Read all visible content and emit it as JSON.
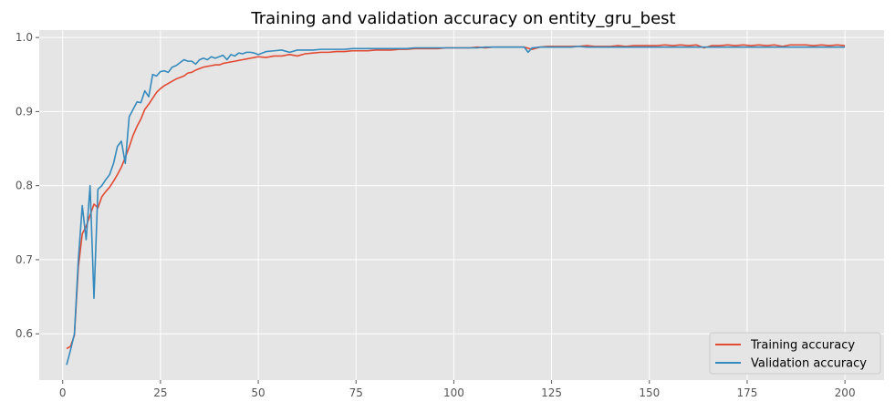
{
  "chart_data": {
    "type": "line",
    "title": "Training and validation accuracy on entity_gru_best",
    "xlabel": "",
    "ylabel": "",
    "xlim": [
      -6,
      210
    ],
    "ylim": [
      0.5375,
      1.01
    ],
    "x_ticks": [
      0,
      25,
      50,
      75,
      100,
      125,
      150,
      175,
      200
    ],
    "y_ticks": [
      0.6,
      0.7,
      0.8,
      0.9,
      1.0
    ],
    "x_tick_labels": [
      "0",
      "25",
      "50",
      "75",
      "100",
      "125",
      "150",
      "175",
      "200"
    ],
    "y_tick_labels": [
      "0.6",
      "0.7",
      "0.8",
      "0.9",
      "1.0"
    ],
    "grid": true,
    "legend_position": "bottom-right",
    "series": [
      {
        "name": "Training accuracy",
        "color": "#E24A33",
        "x": [
          1,
          2,
          3,
          4,
          5,
          6,
          7,
          8,
          9,
          10,
          11,
          12,
          13,
          14,
          15,
          16,
          17,
          18,
          19,
          20,
          21,
          22,
          23,
          24,
          25,
          26,
          27,
          28,
          29,
          30,
          31,
          32,
          33,
          34,
          35,
          36,
          37,
          38,
          39,
          40,
          41,
          42,
          43,
          44,
          45,
          46,
          47,
          48,
          49,
          50,
          52,
          54,
          56,
          58,
          60,
          62,
          64,
          66,
          68,
          70,
          72,
          74,
          76,
          78,
          80,
          82,
          84,
          86,
          88,
          90,
          92,
          94,
          96,
          98,
          100,
          102,
          104,
          106,
          108,
          110,
          112,
          114,
          116,
          118,
          120,
          122,
          124,
          126,
          128,
          130,
          132,
          134,
          136,
          138,
          140,
          142,
          144,
          146,
          148,
          150,
          152,
          154,
          156,
          158,
          160,
          162,
          164,
          166,
          168,
          170,
          172,
          174,
          176,
          178,
          180,
          182,
          184,
          186,
          188,
          190,
          192,
          194,
          196,
          198,
          200
        ],
        "values": [
          0.58,
          0.583,
          0.598,
          0.69,
          0.735,
          0.745,
          0.76,
          0.775,
          0.77,
          0.785,
          0.792,
          0.798,
          0.806,
          0.815,
          0.825,
          0.838,
          0.852,
          0.868,
          0.88,
          0.89,
          0.903,
          0.91,
          0.918,
          0.926,
          0.931,
          0.935,
          0.938,
          0.941,
          0.944,
          0.946,
          0.948,
          0.952,
          0.953,
          0.956,
          0.958,
          0.96,
          0.961,
          0.962,
          0.963,
          0.963,
          0.965,
          0.966,
          0.967,
          0.968,
          0.969,
          0.97,
          0.971,
          0.972,
          0.973,
          0.974,
          0.973,
          0.975,
          0.975,
          0.977,
          0.975,
          0.978,
          0.979,
          0.98,
          0.98,
          0.981,
          0.981,
          0.982,
          0.982,
          0.982,
          0.983,
          0.983,
          0.983,
          0.984,
          0.984,
          0.985,
          0.985,
          0.985,
          0.985,
          0.986,
          0.986,
          0.986,
          0.986,
          0.987,
          0.986,
          0.987,
          0.987,
          0.987,
          0.987,
          0.987,
          0.984,
          0.987,
          0.988,
          0.988,
          0.988,
          0.988,
          0.988,
          0.989,
          0.988,
          0.988,
          0.988,
          0.989,
          0.988,
          0.989,
          0.989,
          0.989,
          0.989,
          0.99,
          0.989,
          0.99,
          0.989,
          0.99,
          0.986,
          0.989,
          0.989,
          0.99,
          0.989,
          0.99,
          0.989,
          0.99,
          0.989,
          0.99,
          0.988,
          0.99,
          0.99,
          0.99,
          0.989,
          0.99,
          0.989,
          0.99,
          0.989
        ]
      },
      {
        "name": "Validation accuracy",
        "color": "#348ABD",
        "x": [
          1,
          2,
          3,
          4,
          5,
          6,
          7,
          8,
          9,
          10,
          11,
          12,
          13,
          14,
          15,
          16,
          17,
          18,
          19,
          20,
          21,
          22,
          23,
          24,
          25,
          26,
          27,
          28,
          29,
          30,
          31,
          32,
          33,
          34,
          35,
          36,
          37,
          38,
          39,
          40,
          41,
          42,
          43,
          44,
          45,
          46,
          47,
          48,
          49,
          50,
          52,
          54,
          56,
          58,
          60,
          62,
          64,
          66,
          68,
          70,
          72,
          74,
          76,
          78,
          80,
          82,
          84,
          86,
          88,
          90,
          92,
          94,
          96,
          98,
          100,
          102,
          104,
          106,
          108,
          110,
          112,
          114,
          116,
          118,
          119,
          120,
          122,
          124,
          126,
          128,
          130,
          132,
          134,
          136,
          138,
          140,
          142,
          144,
          146,
          148,
          150,
          152,
          154,
          156,
          158,
          160,
          162,
          164,
          166,
          168,
          170,
          172,
          174,
          176,
          178,
          180,
          182,
          184,
          186,
          188,
          190,
          192,
          194,
          196,
          198,
          200
        ],
        "values": [
          0.558,
          0.578,
          0.6,
          0.7,
          0.773,
          0.727,
          0.8,
          0.648,
          0.795,
          0.8,
          0.808,
          0.815,
          0.83,
          0.853,
          0.86,
          0.83,
          0.893,
          0.903,
          0.913,
          0.912,
          0.928,
          0.92,
          0.95,
          0.948,
          0.954,
          0.955,
          0.953,
          0.96,
          0.962,
          0.966,
          0.97,
          0.968,
          0.968,
          0.964,
          0.97,
          0.972,
          0.97,
          0.974,
          0.972,
          0.974,
          0.976,
          0.97,
          0.977,
          0.975,
          0.979,
          0.978,
          0.98,
          0.98,
          0.979,
          0.977,
          0.981,
          0.982,
          0.983,
          0.98,
          0.983,
          0.983,
          0.983,
          0.984,
          0.984,
          0.984,
          0.984,
          0.985,
          0.985,
          0.985,
          0.985,
          0.985,
          0.985,
          0.985,
          0.985,
          0.986,
          0.986,
          0.986,
          0.986,
          0.986,
          0.986,
          0.986,
          0.986,
          0.986,
          0.987,
          0.987,
          0.987,
          0.987,
          0.987,
          0.987,
          0.98,
          0.986,
          0.987,
          0.987,
          0.987,
          0.987,
          0.987,
          0.988,
          0.987,
          0.987,
          0.987,
          0.987,
          0.987,
          0.987,
          0.987,
          0.987,
          0.987,
          0.987,
          0.987,
          0.987,
          0.987,
          0.987,
          0.987,
          0.987,
          0.987,
          0.987,
          0.987,
          0.987,
          0.987,
          0.987,
          0.987,
          0.987,
          0.987,
          0.987,
          0.987,
          0.987,
          0.987,
          0.987,
          0.987,
          0.987,
          0.987,
          0.987
        ]
      }
    ]
  }
}
